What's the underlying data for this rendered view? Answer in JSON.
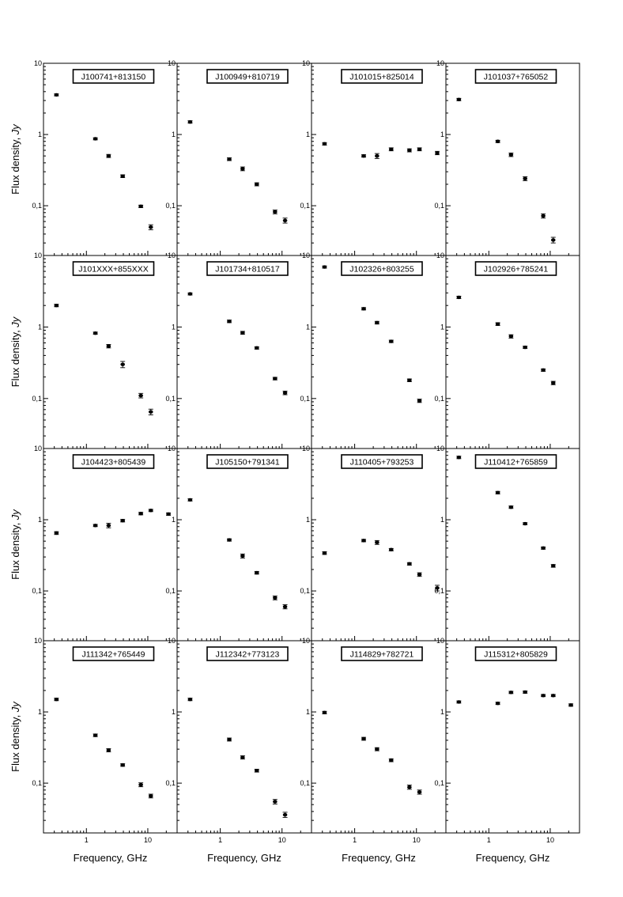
{
  "chart_data": {
    "type": "scatter",
    "layout": "4x4 grid of log-log panels sharing axes",
    "xlabel": "Frequency, GHz",
    "ylabel": "Flux density, ",
    "ylabel_unit": "Jy",
    "xscale": "log",
    "yscale": "log",
    "xlim": [
      0.2,
      30
    ],
    "ylim": [
      0.02,
      10
    ],
    "xticks": [
      1,
      10
    ],
    "xtick_labels": [
      "1",
      "10"
    ],
    "yticks": [
      0.1,
      1,
      10
    ],
    "ytick_labels": [
      "0,1",
      "1",
      "10"
    ],
    "panels": [
      {
        "source": "J100741+813150",
        "x": [
          0.325,
          1.4,
          2.3,
          3.9,
          7.7,
          11.2
        ],
        "y": [
          3.6,
          0.87,
          0.5,
          0.26,
          0.098,
          0.05
        ],
        "yerr": [
          0.12,
          0.03,
          0.025,
          0.012,
          0.004,
          0.004
        ]
      },
      {
        "source": "J100949+810719",
        "x": [
          0.325,
          1.4,
          2.3,
          3.9,
          7.7,
          11.2
        ],
        "y": [
          1.5,
          0.45,
          0.33,
          0.2,
          0.082,
          0.062
        ],
        "yerr": [
          0.06,
          0.02,
          0.02,
          0.01,
          0.005,
          0.005
        ]
      },
      {
        "source": "J101015+825014",
        "x": [
          0.325,
          1.4,
          2.3,
          3.9,
          7.7,
          11.2,
          21.7
        ],
        "y": [
          0.74,
          0.5,
          0.5,
          0.62,
          0.6,
          0.62,
          0.55
        ],
        "yerr": [
          0.03,
          0.02,
          0.04,
          0.03,
          0.03,
          0.03,
          0.03
        ]
      },
      {
        "source": "J101037+765052",
        "x": [
          0.325,
          1.4,
          2.3,
          3.9,
          7.7,
          11.2
        ],
        "y": [
          3.1,
          0.8,
          0.52,
          0.24,
          0.072,
          0.033
        ],
        "yerr": [
          0.12,
          0.03,
          0.03,
          0.015,
          0.005,
          0.003
        ]
      },
      {
        "source": "J101XXX+855XXX",
        "x": [
          0.325,
          1.4,
          2.3,
          3.9,
          7.7,
          11.2
        ],
        "y": [
          2.0,
          0.82,
          0.54,
          0.3,
          0.11,
          0.065
        ],
        "yerr": [
          0.08,
          0.03,
          0.03,
          0.03,
          0.008,
          0.006
        ]
      },
      {
        "source": "J101734+810517",
        "x": [
          0.325,
          1.4,
          2.3,
          3.9,
          7.7,
          11.2
        ],
        "y": [
          2.9,
          1.2,
          0.83,
          0.51,
          0.19,
          0.12
        ],
        "yerr": [
          0.1,
          0.05,
          0.04,
          0.02,
          0.008,
          0.007
        ]
      },
      {
        "source": "J102326+803255",
        "x": [
          0.325,
          1.4,
          2.3,
          3.9,
          7.7,
          11.2
        ],
        "y": [
          6.9,
          1.8,
          1.15,
          0.63,
          0.18,
          0.093
        ],
        "yerr": [
          0.25,
          0.07,
          0.05,
          0.025,
          0.008,
          0.005
        ]
      },
      {
        "source": "J102926+785241",
        "x": [
          0.325,
          1.4,
          2.3,
          3.9,
          7.7,
          11.2
        ],
        "y": [
          2.6,
          1.1,
          0.74,
          0.52,
          0.25,
          0.165
        ],
        "yerr": [
          0.1,
          0.05,
          0.04,
          0.02,
          0.01,
          0.009
        ]
      },
      {
        "source": "J104423+805439",
        "x": [
          0.325,
          1.4,
          2.3,
          3.9,
          7.7,
          11.2,
          21.7
        ],
        "y": [
          0.65,
          0.83,
          0.83,
          0.97,
          1.22,
          1.35,
          1.2
        ],
        "yerr": [
          0.03,
          0.03,
          0.06,
          0.04,
          0.05,
          0.05,
          0.05
        ]
      },
      {
        "source": "J105150+791341",
        "x": [
          0.325,
          1.4,
          2.3,
          3.9,
          7.7,
          11.2
        ],
        "y": [
          1.9,
          0.52,
          0.31,
          0.18,
          0.08,
          0.06
        ],
        "yerr": [
          0.07,
          0.02,
          0.02,
          0.008,
          0.005,
          0.004
        ]
      },
      {
        "source": "J110405+793253",
        "x": [
          0.325,
          1.4,
          2.3,
          3.9,
          7.7,
          11.2,
          21.7
        ],
        "y": [
          0.34,
          0.51,
          0.48,
          0.38,
          0.24,
          0.17,
          0.11
        ],
        "yerr": [
          0.015,
          0.02,
          0.03,
          0.015,
          0.01,
          0.01,
          0.01
        ]
      },
      {
        "source": "J110412+765859",
        "x": [
          0.325,
          1.4,
          2.3,
          3.9,
          7.7,
          11.2
        ],
        "y": [
          7.5,
          2.4,
          1.5,
          0.88,
          0.4,
          0.225
        ],
        "yerr": [
          0.3,
          0.1,
          0.06,
          0.03,
          0.015,
          0.01
        ]
      },
      {
        "source": "J111342+765449",
        "x": [
          0.325,
          1.4,
          2.3,
          3.9,
          7.7,
          11.2
        ],
        "y": [
          1.5,
          0.47,
          0.29,
          0.18,
          0.095,
          0.066
        ],
        "yerr": [
          0.06,
          0.02,
          0.015,
          0.008,
          0.006,
          0.004
        ]
      },
      {
        "source": "J112342+773123",
        "x": [
          0.325,
          1.4,
          2.3,
          3.9,
          7.7,
          11.2
        ],
        "y": [
          1.5,
          0.41,
          0.23,
          0.15,
          0.055,
          0.036
        ],
        "yerr": [
          0.06,
          0.02,
          0.012,
          0.007,
          0.004,
          0.003
        ]
      },
      {
        "source": "J114829+782721",
        "x": [
          0.325,
          1.4,
          2.3,
          3.9,
          7.7,
          11.2
        ],
        "y": [
          0.98,
          0.42,
          0.3,
          0.21,
          0.088,
          0.075
        ],
        "yerr": [
          0.04,
          0.02,
          0.015,
          0.01,
          0.006,
          0.005
        ]
      },
      {
        "source": "J115312+805829",
        "x": [
          0.325,
          1.4,
          2.3,
          3.9,
          7.7,
          11.2,
          21.7
        ],
        "y": [
          1.38,
          1.32,
          1.88,
          1.9,
          1.7,
          1.7,
          1.25
        ],
        "yerr": [
          0.05,
          0.05,
          0.07,
          0.07,
          0.06,
          0.06,
          0.05
        ]
      }
    ]
  }
}
